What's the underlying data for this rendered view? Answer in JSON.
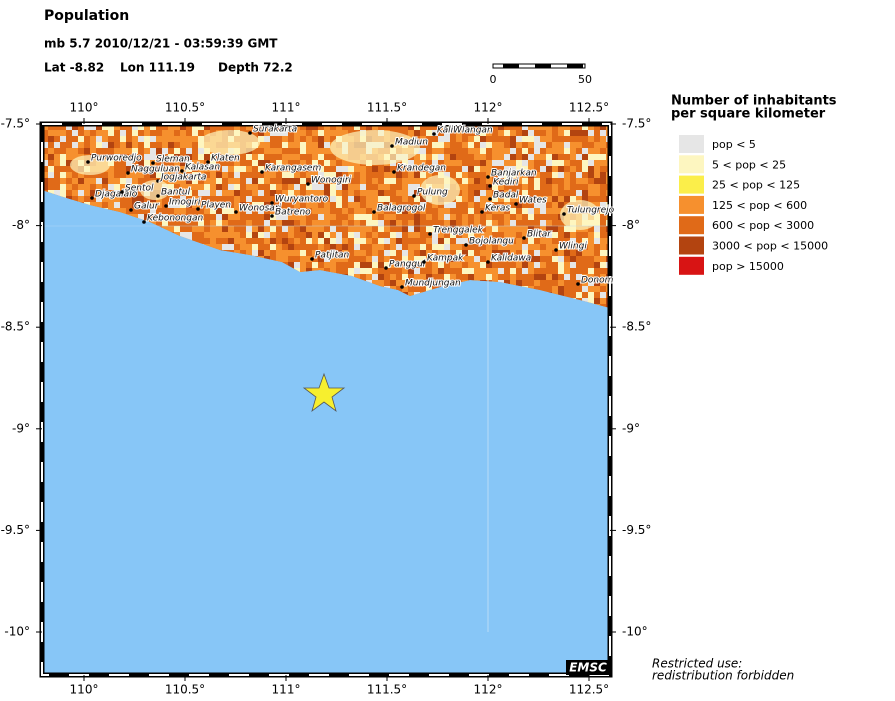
{
  "header": {
    "title": "Population",
    "event": "mb 5.7  2010/12/21 - 03:59:39 GMT",
    "lat": "Lat -8.82",
    "lon": "Lon 111.19",
    "depth": "Depth  72.2"
  },
  "map": {
    "lon_ticks": [
      "110°",
      "110.5°",
      "111°",
      "111.5°",
      "112°",
      "112.5°"
    ],
    "lat_ticks": [
      "-7.5°",
      "-8°",
      "-8.5°",
      "-9°",
      "-9.5°",
      "-10°"
    ],
    "scale_bar": [
      "0",
      "50"
    ],
    "cities": [
      "Purworedjo",
      "Sleman",
      "Nagguluan",
      "Kalasan",
      "Jogjakarta",
      "Klaten",
      "Surakarta",
      "Karangasem",
      "Wonogiri",
      "Madiun",
      "KaliWlangan",
      "Krandegan",
      "Djagalalo",
      "Sentol",
      "Bantul",
      "Galur",
      "Imogiri",
      "Playen",
      "Wonosari",
      "Kebonongan",
      "Wuryantoro",
      "Batreno",
      "Balagrogol",
      "Pulung",
      "Banjarkan",
      "Kediri",
      "Badal",
      "Wates",
      "Keras",
      "Tulungrejo",
      "Trenggalek",
      "Blitar",
      "Bojolangu",
      "Wlingi",
      "Patjitan",
      "Panggul",
      "Kampak",
      "Kalidawa",
      "Mundjungan",
      "Donom"
    ],
    "logo": "EMSC",
    "notice": [
      "Restricted use:",
      "redistribution forbidden"
    ]
  },
  "legend": {
    "title": [
      "Number of inhabitants",
      "per square kilometer"
    ],
    "items": [
      {
        "label": "pop < 5",
        "color": "#e6e6e6"
      },
      {
        "label": "5 < pop < 25",
        "color": "#fdf6c0"
      },
      {
        "label": "25 < pop < 125",
        "color": "#fbee4a"
      },
      {
        "label": "125 < pop < 600",
        "color": "#f6902e"
      },
      {
        "label": "600 < pop < 3000",
        "color": "#e06a18"
      },
      {
        "label": "3000 < pop < 15000",
        "color": "#b34410"
      },
      {
        "label": "pop > 15000",
        "color": "#d81414"
      }
    ]
  }
}
